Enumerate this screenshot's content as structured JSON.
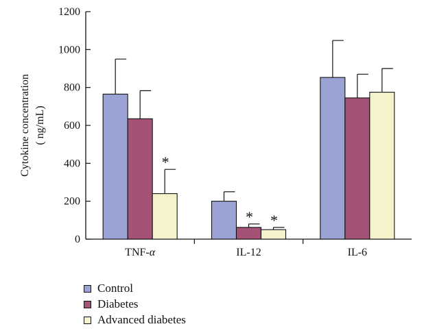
{
  "chart_data": {
    "type": "bar",
    "ylabel": "Cytokine concentration",
    "ylabel_unit": "( ng/mL)",
    "ylim": [
      0,
      1200
    ],
    "yticks": [
      0,
      200,
      400,
      600,
      800,
      1000,
      1200
    ],
    "grid": false,
    "legend_position": "bottom-left",
    "categories": [
      "TNF-α",
      "IL-12",
      "IL-6"
    ],
    "category_labels": [
      {
        "prefix": "TNF-",
        "greek": "α"
      },
      {
        "prefix": "IL-12",
        "greek": ""
      },
      {
        "prefix": "IL-6",
        "greek": ""
      }
    ],
    "series": [
      {
        "name": "Control",
        "color": "#9aa3d4",
        "values": [
          765,
          200,
          853
        ],
        "errors": [
          185,
          50,
          195
        ],
        "marks": [
          "",
          "",
          ""
        ]
      },
      {
        "name": "Diabetes",
        "color": "#a45276",
        "values": [
          635,
          62,
          745
        ],
        "errors": [
          148,
          18,
          125
        ],
        "marks": [
          "",
          "*",
          ""
        ]
      },
      {
        "name": "Advanced diabetes",
        "color": "#f5f3cc",
        "values": [
          240,
          50,
          775
        ],
        "errors": [
          128,
          12,
          125
        ],
        "marks": [
          "*",
          "*",
          ""
        ]
      }
    ]
  }
}
